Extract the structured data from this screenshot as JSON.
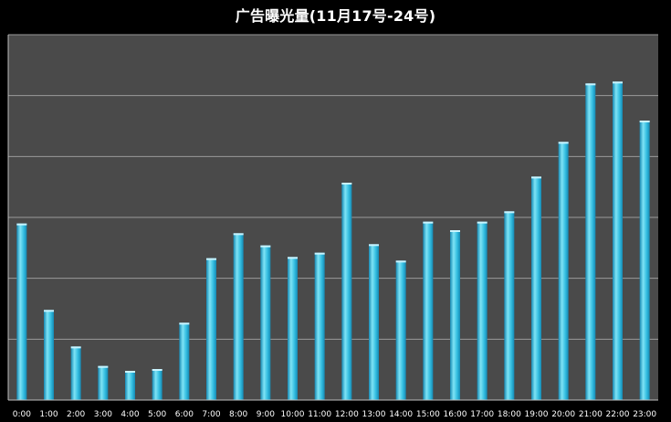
{
  "chart_data": {
    "type": "bar",
    "title": "广告曝光量(11月17号-24号)",
    "xlabel": "",
    "ylabel": "",
    "categories": [
      "0:00",
      "1:00",
      "2:00",
      "3:00",
      "4:00",
      "5:00",
      "6:00",
      "7:00",
      "8:00",
      "9:00",
      "10:00",
      "11:00",
      "12:00",
      "13:00",
      "14:00",
      "15:00",
      "16:00",
      "17:00",
      "18:00",
      "19:00",
      "20:00",
      "21:00",
      "22:00",
      "23:00"
    ],
    "values": [
      2.9,
      1.48,
      0.88,
      0.56,
      0.48,
      0.51,
      1.27,
      2.33,
      2.74,
      2.54,
      2.35,
      2.42,
      3.57,
      2.56,
      2.29,
      2.93,
      2.79,
      2.93,
      3.1,
      3.67,
      4.24,
      5.2,
      5.23,
      4.59
    ],
    "ylim": [
      0,
      6
    ],
    "y_tick_labels_shown": false,
    "grid": true,
    "legend": "none",
    "colors": {
      "background": "#000000",
      "plot_area": "#4a4a4a",
      "gridline": "#9a9a9a",
      "bar_light": "#7fe3f5",
      "bar_mid": "#33bde0",
      "bar_dark": "#1689b3",
      "text": "#ffffff"
    }
  }
}
